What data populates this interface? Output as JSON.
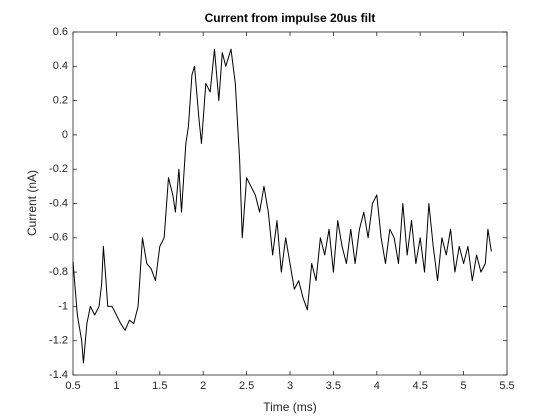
{
  "chart_data": {
    "type": "line",
    "title": "Current from impulse 20us filt",
    "xlabel": "Time (ms)",
    "ylabel": "Current (nA)",
    "xlim": [
      0.5,
      5.5
    ],
    "xticks": [
      0.5,
      1,
      1.5,
      2,
      2.5,
      3,
      3.5,
      4,
      4.5,
      5,
      5.5
    ],
    "ylim": [
      -1.4,
      0.6
    ],
    "yticks": [
      0.6,
      0.4,
      0.2,
      0,
      -0.2,
      -0.4,
      -0.6,
      -0.8,
      -1,
      -1.2,
      -1.4
    ],
    "series": [
      {
        "color": "#000000",
        "x": [
          0.5,
          0.55,
          0.6,
          0.62,
          0.66,
          0.7,
          0.75,
          0.8,
          0.83,
          0.85,
          0.88,
          0.9,
          0.95,
          1.0,
          1.05,
          1.1,
          1.15,
          1.2,
          1.25,
          1.3,
          1.35,
          1.4,
          1.45,
          1.5,
          1.55,
          1.6,
          1.65,
          1.68,
          1.72,
          1.75,
          1.8,
          1.83,
          1.87,
          1.9,
          1.95,
          1.98,
          2.03,
          2.08,
          2.13,
          2.18,
          2.22,
          2.26,
          2.32,
          2.37,
          2.42,
          2.45,
          2.5,
          2.55,
          2.6,
          2.65,
          2.7,
          2.75,
          2.8,
          2.85,
          2.9,
          2.95,
          3.0,
          3.05,
          3.1,
          3.15,
          3.2,
          3.25,
          3.3,
          3.35,
          3.4,
          3.45,
          3.5,
          3.55,
          3.6,
          3.65,
          3.7,
          3.75,
          3.8,
          3.85,
          3.9,
          3.95,
          4.0,
          4.05,
          4.1,
          4.15,
          4.2,
          4.25,
          4.3,
          4.35,
          4.4,
          4.45,
          4.5,
          4.55,
          4.6,
          4.65,
          4.7,
          4.75,
          4.8,
          4.85,
          4.9,
          4.95,
          5.0,
          5.05,
          5.1,
          5.15,
          5.2,
          5.25,
          5.28,
          5.32
        ],
        "values": [
          -0.74,
          -1.05,
          -1.2,
          -1.33,
          -1.1,
          -1.0,
          -1.05,
          -1.0,
          -0.87,
          -0.65,
          -0.85,
          -1.0,
          -1.0,
          -1.05,
          -1.1,
          -1.14,
          -1.08,
          -1.1,
          -1.0,
          -0.6,
          -0.75,
          -0.78,
          -0.85,
          -0.65,
          -0.6,
          -0.25,
          -0.35,
          -0.45,
          -0.2,
          -0.45,
          -0.05,
          0.05,
          0.35,
          0.4,
          0.1,
          -0.05,
          0.3,
          0.25,
          0.5,
          0.2,
          0.48,
          0.4,
          0.5,
          0.3,
          -0.15,
          -0.6,
          -0.25,
          -0.3,
          -0.35,
          -0.45,
          -0.3,
          -0.45,
          -0.7,
          -0.5,
          -0.8,
          -0.6,
          -0.75,
          -0.9,
          -0.85,
          -0.95,
          -1.02,
          -0.75,
          -0.85,
          -0.6,
          -0.7,
          -0.55,
          -0.8,
          -0.5,
          -0.65,
          -0.75,
          -0.55,
          -0.75,
          -0.55,
          -0.45,
          -0.6,
          -0.4,
          -0.35,
          -0.6,
          -0.75,
          -0.55,
          -0.6,
          -0.75,
          -0.4,
          -0.7,
          -0.5,
          -0.75,
          -0.6,
          -0.8,
          -0.4,
          -0.65,
          -0.85,
          -0.6,
          -0.7,
          -0.55,
          -0.8,
          -0.65,
          -0.75,
          -0.65,
          -0.85,
          -0.7,
          -0.8,
          -0.75,
          -0.55,
          -0.68
        ]
      }
    ]
  }
}
